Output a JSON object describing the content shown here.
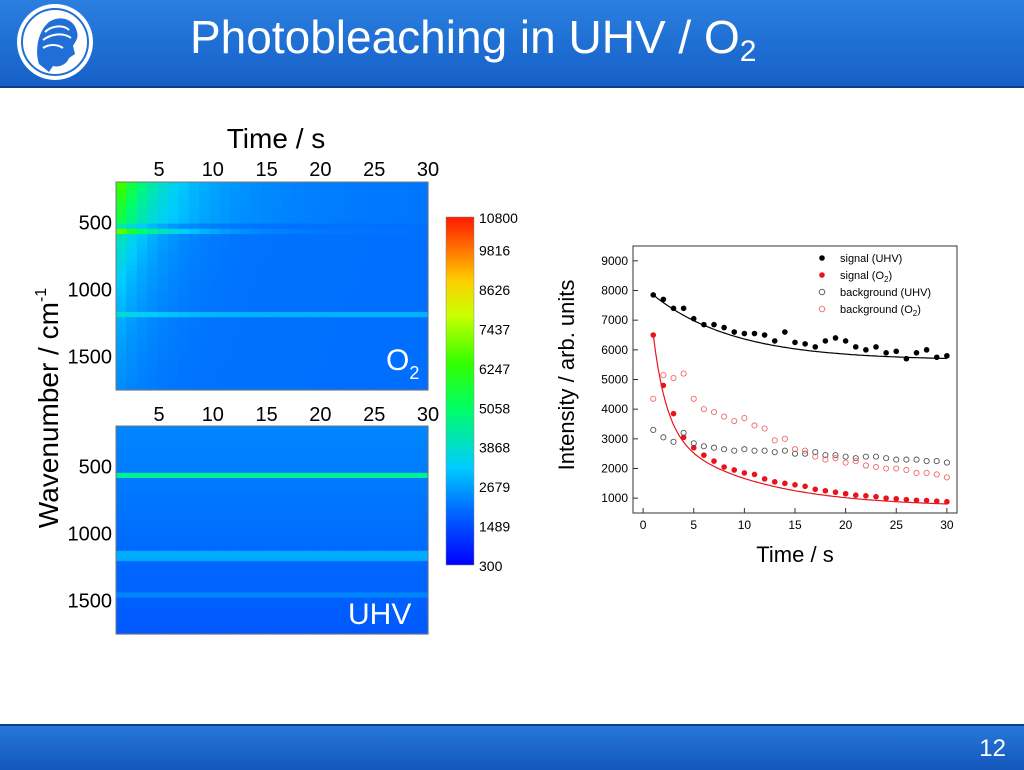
{
  "slide": {
    "title_main": "Photobleaching in UHV / O",
    "title_sub": "2",
    "page_number": "12"
  },
  "colors": {
    "header_blue": "#1f6fd6",
    "signal_uhv": "#000000",
    "signal_o2": "#e8141c",
    "background_uhv": "#555555",
    "background_o2": "#f06a6a"
  },
  "heatmaps": {
    "top_axis_title": "Time / s",
    "y_axis_title_main": "Wavenumber / cm",
    "y_axis_title_sup": "-1",
    "time_ticks": [
      "5",
      "10",
      "15",
      "20",
      "25",
      "30"
    ],
    "wavenumber_ticks": [
      "500",
      "1000",
      "1500"
    ],
    "o2_label_main": "O",
    "o2_label_sub": "2",
    "uhv_label": "UHV",
    "colorbar_ticks": [
      "10800",
      "9816",
      "8626",
      "7437",
      "6247",
      "5058",
      "3868",
      "2679",
      "1489",
      "300"
    ]
  },
  "chart_data": [
    {
      "type": "heatmap",
      "panel": "O2",
      "x_range": [
        1,
        30
      ],
      "y_range": [
        200,
        1750
      ],
      "color_range": [
        300,
        10800
      ],
      "xlabel": "Time / s",
      "ylabel": "Wavenumber / cm-1",
      "label": "O2"
    },
    {
      "type": "heatmap",
      "panel": "UHV",
      "x_range": [
        1,
        30
      ],
      "y_range": [
        200,
        1750
      ],
      "color_range": [
        300,
        10800
      ],
      "ylabel": "Wavenumber / cm-1",
      "label": "UHV"
    },
    {
      "type": "scatter",
      "xlabel": "Time / s",
      "ylabel": "Intensity / arb. units",
      "xlim": [
        -1,
        31
      ],
      "ylim": [
        500,
        9500
      ],
      "x_ticks": [
        0,
        5,
        10,
        15,
        20,
        25,
        30
      ],
      "y_ticks": [
        1000,
        2000,
        3000,
        4000,
        5000,
        6000,
        7000,
        8000,
        9000
      ],
      "legend_position": "top-right",
      "series": [
        {
          "name": "signal (UHV)",
          "marker": "filled",
          "color": "#000000",
          "fit": true,
          "x": [
            1,
            2,
            3,
            4,
            5,
            6,
            7,
            8,
            9,
            10,
            11,
            12,
            13,
            14,
            15,
            16,
            17,
            18,
            19,
            20,
            21,
            22,
            23,
            24,
            25,
            26,
            27,
            28,
            29,
            30
          ],
          "y": [
            7850,
            7700,
            7400,
            7400,
            7050,
            6850,
            6850,
            6750,
            6600,
            6550,
            6550,
            6500,
            6300,
            6600,
            6250,
            6200,
            6100,
            6300,
            6400,
            6300,
            6100,
            6000,
            6100,
            5900,
            5950,
            5700,
            5900,
            6000,
            5750,
            5800
          ]
        },
        {
          "name": "signal (O2)",
          "marker": "filled",
          "color": "#e8141c",
          "fit": true,
          "x": [
            1,
            2,
            3,
            4,
            5,
            6,
            7,
            8,
            9,
            10,
            11,
            12,
            13,
            14,
            15,
            16,
            17,
            18,
            19,
            20,
            21,
            22,
            23,
            24,
            25,
            26,
            27,
            28,
            29,
            30
          ],
          "y": [
            6500,
            4800,
            3850,
            3050,
            2700,
            2450,
            2250,
            2050,
            1950,
            1850,
            1800,
            1650,
            1550,
            1500,
            1450,
            1400,
            1300,
            1250,
            1200,
            1150,
            1100,
            1080,
            1050,
            1000,
            980,
            950,
            930,
            920,
            900,
            880
          ]
        },
        {
          "name": "background (UHV)",
          "marker": "open",
          "color": "#555555",
          "x": [
            1,
            2,
            3,
            4,
            5,
            6,
            7,
            8,
            9,
            10,
            11,
            12,
            13,
            14,
            15,
            16,
            17,
            18,
            19,
            20,
            21,
            22,
            23,
            24,
            25,
            26,
            27,
            28,
            29,
            30
          ],
          "y": [
            3300,
            3050,
            2900,
            3200,
            2850,
            2750,
            2700,
            2650,
            2600,
            2650,
            2600,
            2600,
            2550,
            2600,
            2500,
            2500,
            2550,
            2450,
            2450,
            2400,
            2350,
            2400,
            2400,
            2350,
            2300,
            2300,
            2300,
            2250,
            2250,
            2200
          ]
        },
        {
          "name": "background (O2)",
          "marker": "open",
          "color": "#f06a6a",
          "x": [
            1,
            2,
            3,
            4,
            5,
            6,
            7,
            8,
            9,
            10,
            11,
            12,
            13,
            14,
            15,
            16,
            17,
            18,
            19,
            20,
            21,
            22,
            23,
            24,
            25,
            26,
            27,
            28,
            29,
            30
          ],
          "y": [
            4350,
            5150,
            5050,
            5200,
            4350,
            4000,
            3900,
            3750,
            3600,
            3700,
            3450,
            3350,
            2950,
            3000,
            2650,
            2600,
            2400,
            2300,
            2350,
            2200,
            2250,
            2100,
            2050,
            2000,
            2000,
            1950,
            1850,
            1850,
            1800,
            1700
          ]
        }
      ],
      "legend_entries": [
        {
          "main": "signal (UHV)",
          "sub": "",
          "tail": ""
        },
        {
          "main": "signal (O",
          "sub": "2",
          "tail": ")"
        },
        {
          "main": "background (UHV)",
          "sub": "",
          "tail": ""
        },
        {
          "main": "background (O",
          "sub": "2",
          "tail": ")"
        }
      ]
    }
  ]
}
